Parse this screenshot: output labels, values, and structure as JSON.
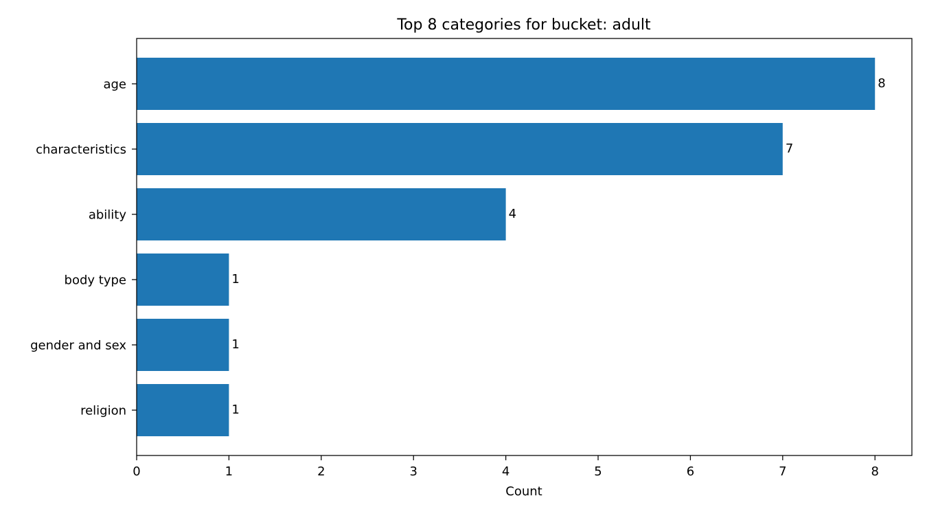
{
  "chart_data": {
    "type": "bar",
    "orientation": "horizontal",
    "title": "Top 8 categories for bucket: adult",
    "xlabel": "Count",
    "ylabel": "",
    "categories": [
      "age",
      "characteristics",
      "ability",
      "body type",
      "gender and sex",
      "religion"
    ],
    "values": [
      8,
      7,
      4,
      1,
      1,
      1
    ],
    "data_labels": [
      "8",
      "7",
      "4",
      "1",
      "1",
      "1"
    ],
    "xlim": [
      0,
      8.4
    ],
    "xticks": [
      0,
      1,
      2,
      3,
      4,
      5,
      6,
      7,
      8
    ],
    "xtick_labels": [
      "0",
      "1",
      "2",
      "3",
      "4",
      "5",
      "6",
      "7",
      "8"
    ],
    "grid": false,
    "legend": "none",
    "bar_color": "#1f77b4"
  }
}
